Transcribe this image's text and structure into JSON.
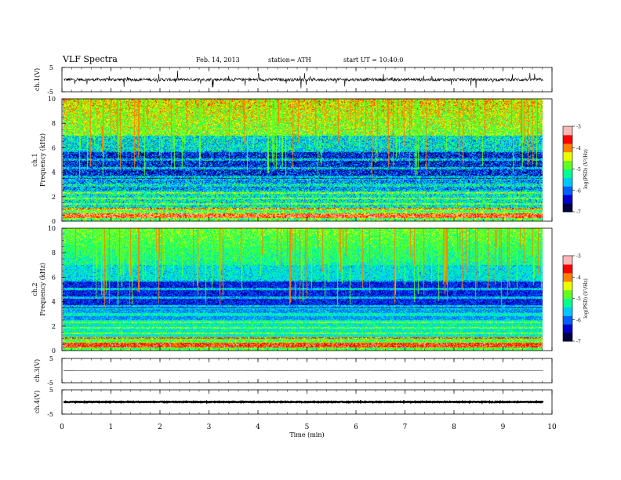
{
  "header": {
    "title": "VLF  Spectra",
    "date": "Feb. 14, 2013",
    "station": "station= ATH",
    "start": "start  UT =   10:40:0"
  },
  "chart_data": [
    {
      "type": "line",
      "name": "ch1-waveform",
      "ylabel": "ch.1(V)",
      "ylim": [
        -5,
        5
      ],
      "yticks": [
        "5",
        "-5"
      ],
      "xlim": [
        0,
        10
      ],
      "trace_level": 0,
      "trace_jitter": 0.6
    },
    {
      "type": "heatmap",
      "name": "ch1-spectrogram",
      "ylabel": "Frequency (kHz)",
      "channel_label": "ch.1",
      "ylim": [
        0,
        10
      ],
      "yticks": [
        "0",
        "2",
        "4",
        "6",
        "8",
        "10"
      ],
      "xlim": [
        0,
        9.82
      ],
      "colorbar": {
        "label": "log(PSD) (V²/Hz)",
        "range": [
          -7,
          -3
        ],
        "ticks": [
          "-3",
          "-4",
          "-5",
          "-6",
          "-7"
        ]
      }
    },
    {
      "type": "heatmap",
      "name": "ch2-spectrogram",
      "ylabel": "Frequency (kHz)",
      "channel_label": "ch.2",
      "ylim": [
        0,
        10
      ],
      "yticks": [
        "0",
        "2",
        "4",
        "6",
        "8",
        "10"
      ],
      "xlim": [
        0,
        9.82
      ],
      "colorbar": {
        "label": "log(PSD) (V²/Hz)",
        "range": [
          -7,
          -3
        ],
        "ticks": [
          "-3",
          "-4",
          "-5",
          "-6",
          "-7"
        ]
      }
    },
    {
      "type": "line",
      "name": "ch3-waveform",
      "ylabel": "ch.3(V)",
      "ylim": [
        -5,
        5
      ],
      "yticks": [
        "5",
        "-5"
      ],
      "xlim": [
        0,
        10
      ],
      "trace_level": 0,
      "trace_jitter": 0.08
    },
    {
      "type": "line",
      "name": "ch4-waveform",
      "ylabel": "ch.4(V)",
      "ylim": [
        -5,
        5
      ],
      "yticks": [
        "5",
        "-5"
      ],
      "xlim": [
        0,
        10
      ],
      "trace_level": 0,
      "trace_jitter": 0.15
    }
  ],
  "xaxis": {
    "label": "Time  (min)",
    "range": [
      0,
      10
    ],
    "ticks": [
      "0",
      "1",
      "2",
      "3",
      "4",
      "5",
      "6",
      "7",
      "8",
      "9",
      "10"
    ]
  },
  "colors": {
    "colormap": [
      "#000040",
      "#0000c8",
      "#0060ff",
      "#00c8ff",
      "#00ff90",
      "#60ff20",
      "#e8ff00",
      "#ff8000",
      "#ff0000",
      "#ffb8b8"
    ]
  }
}
